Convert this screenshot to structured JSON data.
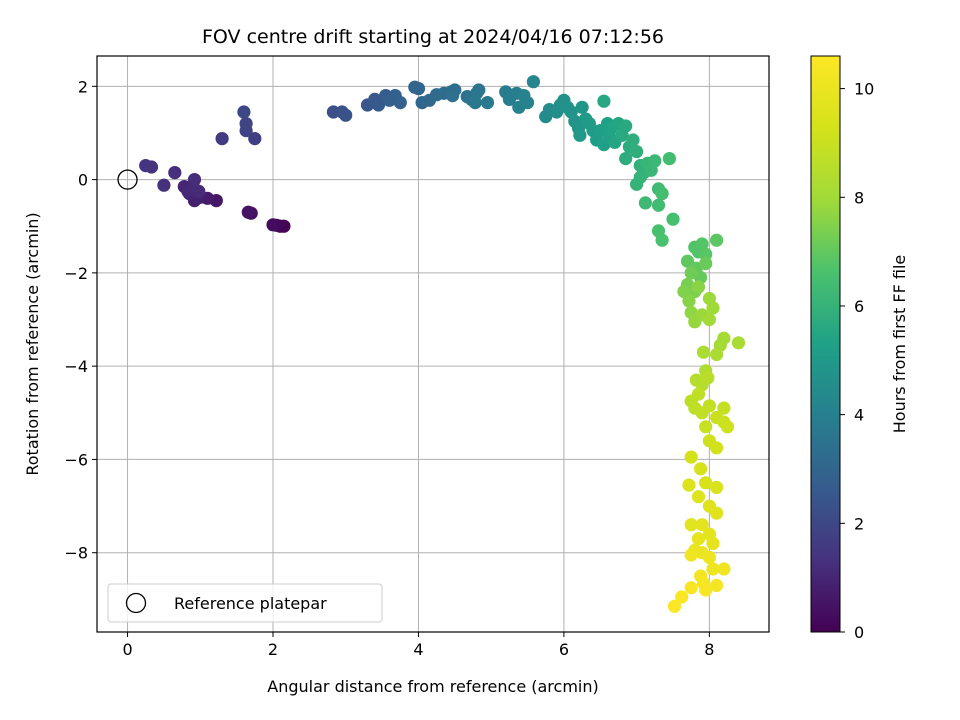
{
  "chart_data": {
    "type": "scatter",
    "title": "FOV centre drift starting at 2024/04/16 07:12:56",
    "xlabel": "Angular distance from reference (arcmin)",
    "ylabel": "Rotation from reference (arcmin)",
    "xlim": [
      -0.42,
      8.82
    ],
    "ylim": [
      -9.7,
      2.65
    ],
    "xticks": [
      0,
      2,
      4,
      6,
      8
    ],
    "yticks": [
      -8,
      -6,
      -4,
      -2,
      0,
      2
    ],
    "grid": true,
    "colormap": "viridis",
    "colorbar": {
      "label": "Hours from first FF file",
      "range": [
        0,
        10.6
      ],
      "ticks": [
        0,
        2,
        4,
        6,
        8,
        10
      ]
    },
    "legend": {
      "location": "lower-left",
      "entries": [
        "Reference platepar"
      ]
    },
    "reference_point": {
      "x": 0,
      "y": 0
    },
    "series": [
      {
        "name": "Reference platepar",
        "points": [
          [
            0,
            0
          ]
        ]
      },
      {
        "points": [
          [
            2.15,
            -1.0,
            0.05
          ],
          [
            2.1,
            -1.0,
            0.1
          ],
          [
            2.05,
            -0.98,
            0.2
          ],
          [
            2.0,
            -0.97,
            0.3
          ],
          [
            1.7,
            -0.72,
            0.4
          ],
          [
            1.66,
            -0.7,
            0.5
          ],
          [
            1.22,
            -0.45,
            0.6
          ],
          [
            1.1,
            -0.4,
            0.7
          ],
          [
            1.0,
            -0.38,
            0.8
          ],
          [
            0.92,
            -0.45,
            0.85
          ],
          [
            0.95,
            -0.35,
            0.9
          ],
          [
            0.85,
            -0.3,
            0.95
          ],
          [
            0.78,
            -0.15,
            1.0
          ],
          [
            0.83,
            -0.25,
            1.05
          ],
          [
            0.92,
            -0.2,
            1.1
          ],
          [
            0.98,
            -0.25,
            1.15
          ],
          [
            0.92,
            0.0,
            1.2
          ],
          [
            0.65,
            0.15,
            1.25
          ],
          [
            0.5,
            -0.12,
            1.3
          ],
          [
            0.33,
            0.27,
            1.35
          ],
          [
            0.25,
            0.3,
            1.4
          ],
          [
            1.3,
            0.88,
            1.6
          ],
          [
            1.75,
            0.88,
            1.75
          ],
          [
            1.63,
            1.05,
            1.85
          ],
          [
            1.63,
            1.2,
            1.9
          ],
          [
            1.6,
            1.45,
            2.0
          ],
          [
            2.83,
            1.45,
            2.25
          ],
          [
            2.95,
            1.45,
            2.3
          ],
          [
            3.0,
            1.38,
            2.35
          ],
          [
            3.3,
            1.6,
            2.45
          ],
          [
            3.4,
            1.72,
            2.55
          ],
          [
            3.45,
            1.6,
            2.6
          ],
          [
            3.55,
            1.8,
            2.7
          ],
          [
            3.6,
            1.7,
            2.75
          ],
          [
            3.68,
            1.8,
            2.8
          ],
          [
            3.75,
            1.65,
            2.85
          ],
          [
            3.95,
            1.98,
            2.95
          ],
          [
            4.0,
            1.95,
            3.0
          ],
          [
            4.05,
            1.65,
            3.05
          ],
          [
            4.15,
            1.7,
            3.1
          ],
          [
            4.25,
            1.82,
            3.2
          ],
          [
            4.35,
            1.85,
            3.25
          ],
          [
            4.45,
            1.88,
            3.3
          ],
          [
            4.5,
            1.92,
            3.35
          ],
          [
            4.47,
            1.8,
            3.4
          ],
          [
            4.67,
            1.78,
            3.5
          ],
          [
            4.73,
            1.72,
            3.55
          ],
          [
            4.8,
            1.85,
            3.6
          ],
          [
            4.83,
            1.92,
            3.65
          ],
          [
            4.78,
            1.65,
            3.7
          ],
          [
            4.95,
            1.65,
            3.75
          ],
          [
            5.2,
            1.88,
            3.85
          ],
          [
            5.25,
            1.72,
            3.9
          ],
          [
            5.35,
            1.85,
            3.95
          ],
          [
            5.38,
            1.55,
            4.0
          ],
          [
            5.45,
            1.8,
            4.05
          ],
          [
            5.5,
            1.65,
            4.1
          ],
          [
            5.58,
            2.1,
            4.2
          ],
          [
            5.75,
            1.35,
            4.45
          ],
          [
            5.8,
            1.5,
            4.5
          ],
          [
            5.9,
            1.45,
            4.55
          ],
          [
            5.95,
            1.6,
            4.6
          ],
          [
            6.0,
            1.7,
            4.65
          ],
          [
            6.05,
            1.55,
            4.7
          ],
          [
            6.1,
            1.45,
            4.75
          ],
          [
            6.15,
            1.25,
            4.8
          ],
          [
            6.2,
            1.1,
            4.85
          ],
          [
            6.25,
            1.55,
            4.9
          ],
          [
            6.22,
            0.95,
            4.95
          ],
          [
            6.3,
            1.3,
            5.0
          ],
          [
            6.35,
            1.2,
            5.05
          ],
          [
            6.4,
            1.05,
            5.1
          ],
          [
            6.45,
            0.85,
            5.15
          ],
          [
            6.5,
            1.05,
            5.2
          ],
          [
            6.55,
            0.75,
            5.25
          ],
          [
            6.6,
            1.2,
            5.3
          ],
          [
            6.62,
            0.95,
            5.35
          ],
          [
            6.65,
            1.1,
            5.4
          ],
          [
            6.7,
            0.8,
            5.45
          ],
          [
            6.75,
            1.2,
            5.5
          ],
          [
            6.55,
            1.68,
            5.55
          ],
          [
            6.8,
            0.95,
            5.6
          ],
          [
            6.85,
            1.15,
            5.65
          ],
          [
            6.9,
            0.7,
            5.7
          ],
          [
            6.85,
            0.45,
            5.75
          ],
          [
            6.95,
            0.85,
            5.8
          ],
          [
            7.0,
            0.6,
            5.85
          ],
          [
            7.05,
            0.3,
            5.9
          ],
          [
            7.1,
            0.15,
            5.95
          ],
          [
            7.0,
            -0.1,
            6.0
          ],
          [
            7.05,
            0.05,
            6.05
          ],
          [
            7.15,
            0.35,
            6.1
          ],
          [
            7.2,
            0.2,
            6.15
          ],
          [
            7.25,
            0.4,
            6.2
          ],
          [
            7.12,
            -0.5,
            6.25
          ],
          [
            7.3,
            -0.2,
            6.3
          ],
          [
            7.3,
            -0.55,
            6.35
          ],
          [
            7.45,
            0.45,
            6.4
          ],
          [
            7.35,
            -0.3,
            6.45
          ],
          [
            7.5,
            -0.85,
            6.5
          ],
          [
            7.3,
            -1.1,
            6.55
          ],
          [
            7.35,
            -1.3,
            6.6
          ],
          [
            7.8,
            -1.45,
            6.7
          ],
          [
            7.85,
            -1.55,
            6.75
          ],
          [
            7.9,
            -1.38,
            6.8
          ],
          [
            7.95,
            -1.6,
            6.85
          ],
          [
            8.1,
            -1.3,
            6.9
          ],
          [
            7.7,
            -1.75,
            6.95
          ],
          [
            7.82,
            -1.9,
            7.0
          ],
          [
            7.88,
            -2.1,
            7.05
          ],
          [
            7.95,
            -1.8,
            7.1
          ],
          [
            7.75,
            -2.0,
            7.2
          ],
          [
            7.7,
            -2.25,
            7.3
          ],
          [
            7.8,
            -2.4,
            7.4
          ],
          [
            7.65,
            -2.4,
            7.45
          ],
          [
            7.72,
            -2.6,
            7.55
          ],
          [
            7.85,
            -2.3,
            7.6
          ],
          [
            7.75,
            -2.85,
            7.7
          ],
          [
            7.8,
            -3.05,
            7.8
          ],
          [
            7.9,
            -2.9,
            7.85
          ],
          [
            8.0,
            -2.55,
            7.9
          ],
          [
            8.05,
            -2.75,
            7.95
          ],
          [
            8.0,
            -3.0,
            8.0
          ],
          [
            8.15,
            -3.55,
            8.05
          ],
          [
            8.2,
            -3.4,
            8.1
          ],
          [
            8.4,
            -3.5,
            8.15
          ],
          [
            7.92,
            -3.7,
            8.2
          ],
          [
            8.1,
            -3.75,
            8.25
          ],
          [
            7.95,
            -4.1,
            8.35
          ],
          [
            7.82,
            -4.3,
            8.45
          ],
          [
            7.9,
            -4.4,
            8.5
          ],
          [
            7.98,
            -4.25,
            8.55
          ],
          [
            7.75,
            -4.75,
            8.65
          ],
          [
            7.8,
            -4.9,
            8.7
          ],
          [
            7.85,
            -4.6,
            8.75
          ],
          [
            7.9,
            -5.0,
            8.8
          ],
          [
            8.0,
            -4.85,
            8.85
          ],
          [
            8.2,
            -4.9,
            8.9
          ],
          [
            7.95,
            -5.3,
            8.95
          ],
          [
            8.1,
            -5.1,
            9.0
          ],
          [
            8.2,
            -5.2,
            9.05
          ],
          [
            8.25,
            -5.3,
            9.1
          ],
          [
            8.0,
            -5.6,
            9.15
          ],
          [
            8.1,
            -5.75,
            9.2
          ],
          [
            7.75,
            -5.95,
            9.3
          ],
          [
            7.88,
            -6.2,
            9.35
          ],
          [
            7.95,
            -6.5,
            9.4
          ],
          [
            8.1,
            -6.6,
            9.45
          ],
          [
            7.72,
            -6.55,
            9.5
          ],
          [
            7.85,
            -6.8,
            9.55
          ],
          [
            8.0,
            -7.0,
            9.6
          ],
          [
            8.1,
            -7.15,
            9.65
          ],
          [
            7.75,
            -7.4,
            9.7
          ],
          [
            7.9,
            -7.4,
            9.75
          ],
          [
            8.0,
            -7.6,
            9.8
          ],
          [
            7.85,
            -7.7,
            9.85
          ],
          [
            8.05,
            -7.8,
            9.9
          ],
          [
            7.8,
            -7.95,
            9.95
          ],
          [
            7.9,
            -8.0,
            10.0
          ],
          [
            8.0,
            -8.1,
            10.05
          ],
          [
            8.05,
            -8.35,
            10.1
          ],
          [
            7.75,
            -8.05,
            10.15
          ],
          [
            8.2,
            -8.35,
            10.2
          ],
          [
            7.88,
            -8.5,
            10.25
          ],
          [
            7.92,
            -8.65,
            10.3
          ],
          [
            8.1,
            -8.7,
            10.35
          ],
          [
            7.95,
            -8.8,
            10.4
          ],
          [
            7.75,
            -8.75,
            10.45
          ],
          [
            7.62,
            -8.95,
            10.5
          ],
          [
            7.52,
            -9.15,
            10.55
          ]
        ]
      }
    ]
  }
}
